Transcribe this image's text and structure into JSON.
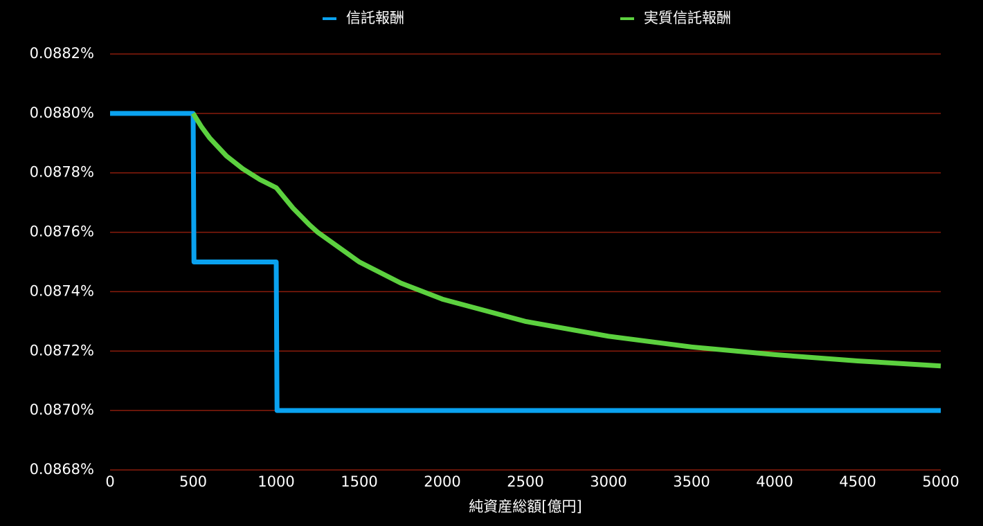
{
  "chart_data": {
    "type": "line",
    "x_label": "純資産総額[億円]",
    "xlim": [
      0,
      5000
    ],
    "xticks": [
      0,
      500,
      1000,
      1500,
      2000,
      2500,
      3000,
      3500,
      4000,
      4500,
      5000
    ],
    "ylim": [
      0.0868,
      0.0882
    ],
    "yticks": [
      {
        "value": 0.0868,
        "label": "0.0868%"
      },
      {
        "value": 0.087,
        "label": "0.0870%"
      },
      {
        "value": 0.0872,
        "label": "0.0872%"
      },
      {
        "value": 0.0874,
        "label": "0.0874%"
      },
      {
        "value": 0.0876,
        "label": "0.0876%"
      },
      {
        "value": 0.0878,
        "label": "0.0878%"
      },
      {
        "value": 0.088,
        "label": "0.0880%"
      },
      {
        "value": 0.0882,
        "label": "0.0882%"
      }
    ],
    "grid": true,
    "grid_color": "#8a1c0c",
    "legend": "top",
    "series": [
      {
        "name": "信託報酬",
        "color": "#0aa2f0",
        "x": [
          0,
          500,
          505,
          1000,
          1005,
          5000
        ],
        "values": [
          0.088,
          0.088,
          0.0875,
          0.0875,
          0.087,
          0.087
        ]
      },
      {
        "name": "実質信託報酬",
        "color": "#5cd13f",
        "x": [
          500,
          550,
          600,
          700,
          800,
          900,
          1000,
          1100,
          1200,
          1250,
          1500,
          1750,
          2000,
          2500,
          3000,
          3500,
          4000,
          4500,
          5000
        ],
        "values": [
          0.088,
          0.087955,
          0.087917,
          0.087857,
          0.087813,
          0.087778,
          0.08775,
          0.087682,
          0.087625,
          0.0876,
          0.0875,
          0.087429,
          0.087375,
          0.0873,
          0.08725,
          0.087214,
          0.087188,
          0.087167,
          0.08715
        ]
      }
    ]
  }
}
